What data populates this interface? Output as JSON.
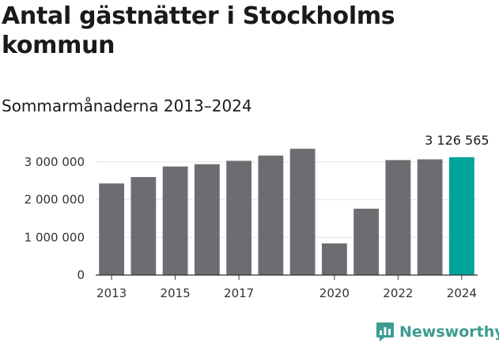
{
  "title": "Antal gästnätter i Stockholms kommun",
  "subtitle": "Sommarmånaderna 2013–2024",
  "brand": {
    "name": "Newsworthy",
    "icon": "newsworthy-logo-icon",
    "color": "#3d9b92"
  },
  "chart_data": {
    "type": "bar",
    "categories": [
      "2013",
      "2014",
      "2015",
      "2016",
      "2017",
      "2018",
      "2019",
      "2020",
      "2021",
      "2022",
      "2023",
      "2024"
    ],
    "values": [
      2430000,
      2600000,
      2880000,
      2940000,
      3030000,
      3170000,
      3350000,
      840000,
      1760000,
      3050000,
      3070000,
      3126565
    ],
    "x_tick_labels": [
      "2013",
      "2015",
      "2017",
      "2020",
      "2022",
      "2024"
    ],
    "y_ticks": [
      0,
      1000000,
      2000000,
      3000000
    ],
    "y_tick_labels": [
      "0",
      "1 000 000",
      "2 000 000",
      "3 000 000"
    ],
    "ylim": [
      0,
      3500000
    ],
    "highlight_index": 11,
    "highlight_label": "3 126 565",
    "colors": {
      "bar": "#6d6c70",
      "highlight": "#00a39a",
      "grid": "#e4e4e4",
      "axis": "#333333"
    },
    "grid": true,
    "xlabel": "",
    "ylabel": ""
  }
}
